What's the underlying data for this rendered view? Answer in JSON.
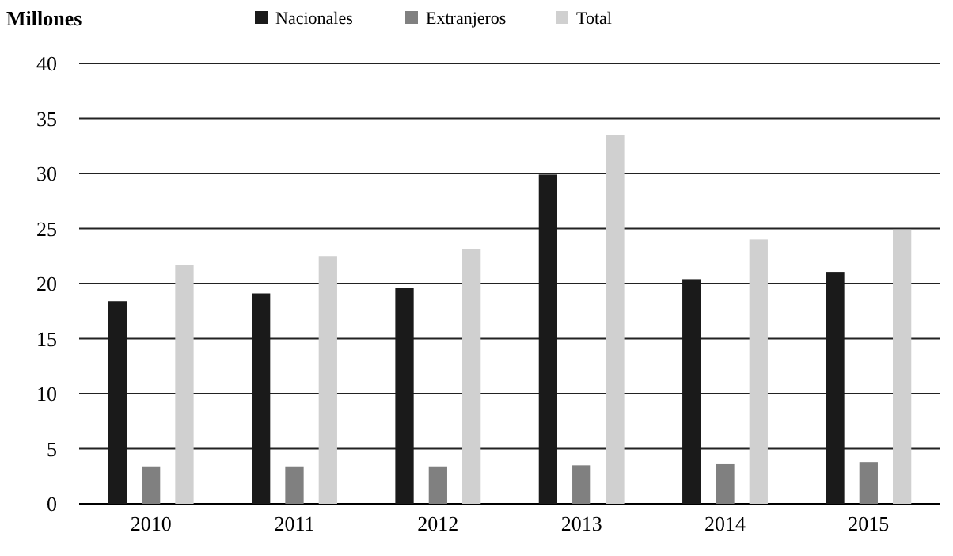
{
  "chart_data": {
    "type": "bar",
    "ylabel": "Millones",
    "categories": [
      "2010",
      "2011",
      "2012",
      "2013",
      "2014",
      "2015"
    ],
    "series": [
      {
        "name": "Nacionales",
        "color": "#1a1a1a",
        "values": [
          18.4,
          19.1,
          19.6,
          29.9,
          20.4,
          21.0
        ]
      },
      {
        "name": "Extranjeros",
        "color": "#808080",
        "values": [
          3.4,
          3.4,
          3.4,
          3.5,
          3.6,
          3.8
        ]
      },
      {
        "name": "Total",
        "color": "#d0d0d0",
        "values": [
          21.7,
          22.5,
          23.1,
          33.5,
          24.0,
          24.9
        ]
      }
    ],
    "ylim": [
      0,
      40
    ],
    "yticks": [
      0,
      5,
      10,
      15,
      20,
      25,
      30,
      35,
      40
    ],
    "grid": "y",
    "legend": "top"
  }
}
